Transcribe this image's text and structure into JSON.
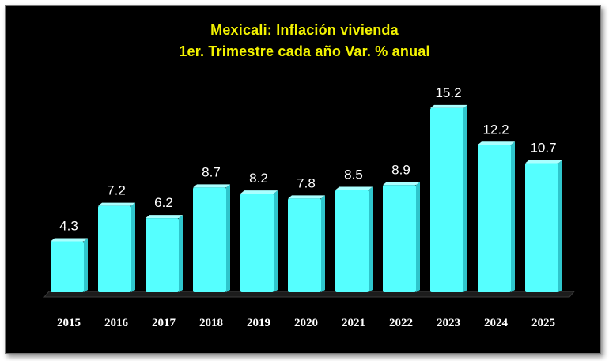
{
  "chart_data": {
    "type": "bar",
    "title": "Mexicali: Inflación vivienda",
    "subtitle": "1er. Trimestre cada año Var. % anual",
    "categories": [
      "2015",
      "2016",
      "2017",
      "2018",
      "2019",
      "2020",
      "2021",
      "2022",
      "2023",
      "2024",
      "2025"
    ],
    "values": [
      4.3,
      7.2,
      6.2,
      8.7,
      8.2,
      7.8,
      8.5,
      8.9,
      15.2,
      12.2,
      10.7
    ],
    "data_labels": [
      "4.3",
      "7.2",
      "6.2",
      "8.7",
      "8.2",
      "7.8",
      "8.5",
      "8.9",
      "15.2",
      "12.2",
      "10.7"
    ],
    "xlabel": "",
    "ylabel": "",
    "ylim": [
      0,
      17
    ],
    "grid": false,
    "legend": "none",
    "colors": {
      "background": "#000000",
      "bar": "#55ffff",
      "bar_side": "#2fc6cc",
      "title": "#f2f200",
      "labels": "#ffffff",
      "floor": "#1c1c1c"
    }
  }
}
